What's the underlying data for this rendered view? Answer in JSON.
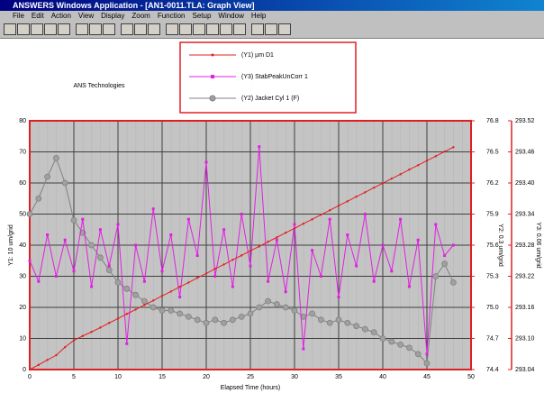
{
  "window": {
    "title": "ANSWERS Windows Application - [AN1-0011.TLA: Graph View]",
    "menu": [
      "File",
      "Edit",
      "Action",
      "View",
      "Display",
      "Zoom",
      "Function",
      "Setup",
      "Window",
      "Help"
    ]
  },
  "chart_data": {
    "type": "line",
    "annotation": "ANS Technologies",
    "xlabel": "Elapsed Time (hours)",
    "ylabel": "Y1: 10 um/grid",
    "y2label": "Y2: 0.3 um/grid",
    "y3label": "Y3: 0.06 um/grid",
    "xlim": [
      0,
      50
    ],
    "xticks": [
      0,
      5,
      10,
      15,
      20,
      25,
      30,
      35,
      40,
      45,
      50
    ],
    "ylim": [
      0,
      80
    ],
    "yticks": [
      0,
      10,
      20,
      30,
      40,
      50,
      60,
      70,
      80
    ],
    "y2lim": [
      74.4,
      76.8
    ],
    "y2ticks": [
      74.4,
      74.7,
      {
        "value": 75,
        "label": "75.0"
      },
      75.3,
      75.6,
      75.9,
      76.2,
      76.5,
      76.8
    ],
    "y3lim": [
      293.04,
      293.52
    ],
    "y3ticks": [
      293.04,
      {
        "value": 293.1,
        "label": "293.10"
      },
      293.16,
      293.22,
      293.28,
      293.34,
      {
        "value": 293.4,
        "label": "293.40"
      },
      293.46,
      293.52
    ],
    "grid": true,
    "x": [
      0,
      1,
      2,
      3,
      4,
      5,
      6,
      7,
      8,
      9,
      10,
      11,
      12,
      13,
      14,
      15,
      16,
      17,
      18,
      19,
      20,
      21,
      22,
      23,
      24,
      25,
      26,
      27,
      28,
      29,
      30,
      31,
      32,
      33,
      34,
      35,
      36,
      37,
      38,
      39,
      40,
      41,
      42,
      43,
      44,
      45,
      46,
      47,
      48
    ],
    "series": [
      {
        "name": "(Y1) µm D1",
        "color": "#e02020",
        "axis": "y",
        "marker": "dot",
        "values": [
          0,
          1.5,
          3.1,
          4.6,
          7.2,
          9.4,
          10.8,
          12.1,
          13.5,
          15.0,
          16.4,
          17.9,
          19.3,
          20.8,
          22.2,
          23.7,
          25.1,
          26.6,
          28.0,
          29.5,
          30.9,
          32.4,
          33.8,
          35.3,
          36.7,
          38.2,
          39.6,
          41.1,
          42.5,
          44.0,
          45.4,
          46.9,
          48.3,
          49.8,
          51.2,
          52.7,
          54.1,
          55.6,
          57.0,
          58.5,
          59.9,
          61.4,
          62.8,
          64.3,
          65.7,
          67.2,
          68.6,
          70.1,
          71.5
        ]
      },
      {
        "name": "(Y3) StabPeakUnCorr 1",
        "color": "#e020e0",
        "axis": "y3",
        "marker": "square",
        "values": [
          293.25,
          293.21,
          293.3,
          293.22,
          293.29,
          293.23,
          293.33,
          293.2,
          293.31,
          293.24,
          293.32,
          293.09,
          293.28,
          293.21,
          293.35,
          293.23,
          293.3,
          293.18,
          293.33,
          293.26,
          293.44,
          293.22,
          293.31,
          293.2,
          293.34,
          293.24,
          293.47,
          293.21,
          293.29,
          293.19,
          293.32,
          293.08,
          293.27,
          293.22,
          293.33,
          293.18,
          293.3,
          293.24,
          293.34,
          293.21,
          293.28,
          293.23,
          293.33,
          293.2,
          293.29,
          293.07,
          293.32,
          293.26,
          293.28
        ]
      },
      {
        "name": "(Y2) Jacket Cyl 1 (F)",
        "color": "#808080",
        "axis": "y2",
        "marker": "circle",
        "values": [
          75.9,
          76.05,
          76.26,
          76.44,
          76.2,
          75.84,
          75.72,
          75.6,
          75.48,
          75.36,
          75.24,
          75.18,
          75.12,
          75.06,
          75.0,
          74.97,
          74.97,
          74.94,
          74.91,
          74.88,
          74.85,
          74.88,
          74.85,
          74.88,
          74.91,
          74.94,
          75.0,
          75.06,
          75.03,
          75.0,
          74.97,
          74.91,
          74.94,
          74.88,
          74.85,
          74.88,
          74.85,
          74.82,
          74.79,
          74.76,
          74.7,
          74.67,
          74.64,
          74.61,
          74.55,
          74.46,
          75.3,
          75.42,
          75.24
        ]
      }
    ]
  }
}
